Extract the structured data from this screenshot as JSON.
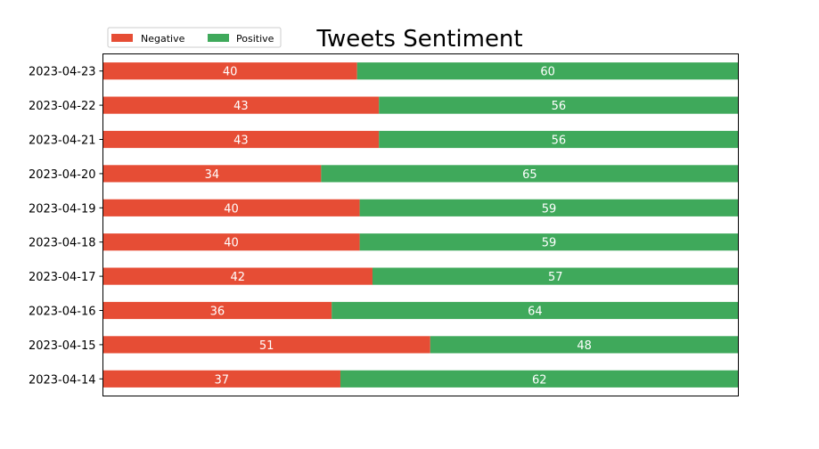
{
  "chart_data": {
    "type": "bar",
    "orientation": "horizontal",
    "stacked": true,
    "normalized": true,
    "title": "Tweets Sentiment",
    "xlabel": "",
    "ylabel": "",
    "xaxis_visible": false,
    "grid": false,
    "legend": {
      "placement": "top-left",
      "ncol": 2
    },
    "categories": [
      "2023-04-23",
      "2023-04-22",
      "2023-04-21",
      "2023-04-20",
      "2023-04-19",
      "2023-04-18",
      "2023-04-17",
      "2023-04-16",
      "2023-04-15",
      "2023-04-14"
    ],
    "series": [
      {
        "name": "Negative",
        "color": "#e64d35",
        "values": [
          40,
          43,
          43,
          34,
          40,
          40,
          42,
          36,
          51,
          37
        ]
      },
      {
        "name": "Positive",
        "color": "#3fa95b",
        "values": [
          60,
          56,
          56,
          65,
          59,
          59,
          57,
          64,
          48,
          62
        ]
      }
    ]
  }
}
